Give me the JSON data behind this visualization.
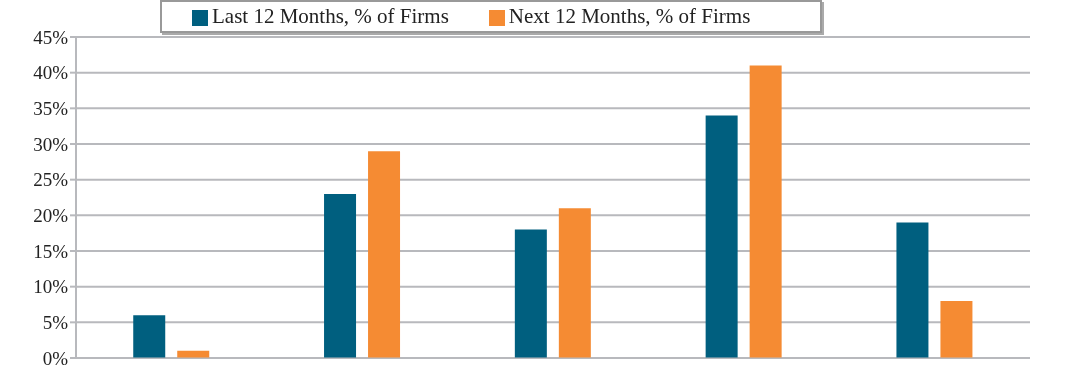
{
  "chart_data": {
    "type": "bar",
    "categories": [
      null,
      null,
      null,
      null,
      null
    ],
    "series": [
      {
        "name": "Last 12 Months, % of Firms",
        "color": "#005f7f",
        "values": [
          6,
          23,
          18,
          34,
          19
        ]
      },
      {
        "name": "Next 12 Months, % of Firms",
        "color": "#f58b33",
        "values": [
          1,
          29,
          21,
          41,
          8
        ]
      }
    ],
    "ylim": [
      0,
      45
    ],
    "yticks": [
      {
        "value": 0,
        "label": "0%"
      },
      {
        "value": 5,
        "label": "5%"
      },
      {
        "value": 10,
        "label": "10%"
      },
      {
        "value": 15,
        "label": "15%"
      },
      {
        "value": 20,
        "label": "20%"
      },
      {
        "value": 25,
        "label": "25%"
      },
      {
        "value": 30,
        "label": "30%"
      },
      {
        "value": 35,
        "label": "35%"
      },
      {
        "value": 40,
        "label": "40%"
      },
      {
        "value": 45,
        "label": "45%"
      }
    ],
    "grid": "y",
    "legend": "top",
    "tick_labels": "y"
  }
}
